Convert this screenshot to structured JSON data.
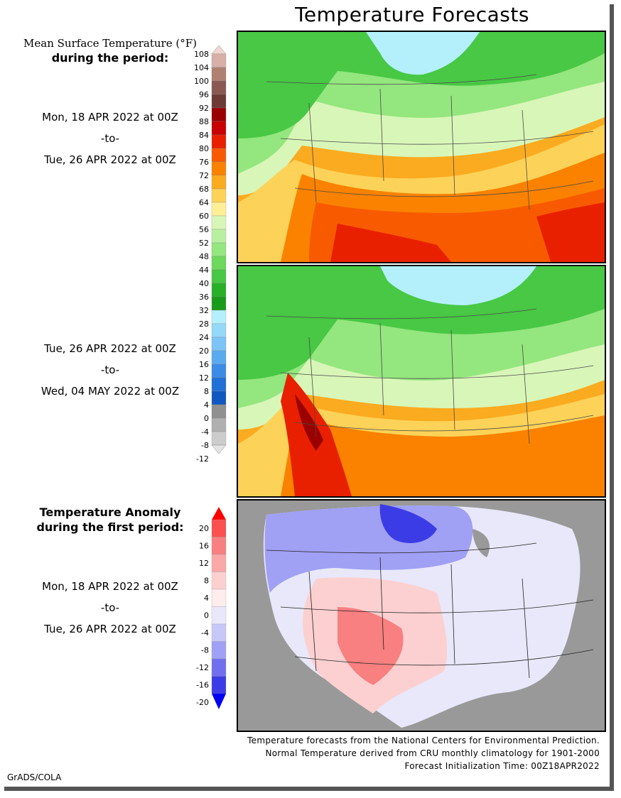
{
  "title": "Temperature Forecasts",
  "mean_legend": {
    "title_line1": "Mean Surface Temperature (°F)",
    "title_line2": "during the period:",
    "ticks": [
      "108",
      "104",
      "100",
      "96",
      "92",
      "88",
      "84",
      "80",
      "76",
      "72",
      "68",
      "64",
      "60",
      "56",
      "52",
      "48",
      "44",
      "40",
      "36",
      "32",
      "28",
      "24",
      "20",
      "16",
      "12",
      "8",
      "4",
      "0",
      "-4",
      "-8",
      "-12"
    ],
    "colors": [
      "#f0d8d0",
      "#d8b0a8",
      "#b08070",
      "#8a5850",
      "#6e3a34",
      "#9a0000",
      "#c80000",
      "#e82000",
      "#f85a00",
      "#fa8200",
      "#fbab20",
      "#fdd258",
      "#fff098",
      "#d8f6b8",
      "#b8f0a0",
      "#94e67e",
      "#6cd85c",
      "#48c844",
      "#28b028",
      "#1a9a1a",
      "#b4f0fc",
      "#96d8f8",
      "#7cc4f6",
      "#5aaaf0",
      "#3c8ce6",
      "#2070d8",
      "#1058c0",
      "#909090",
      "#b0b0b0",
      "#cccccc",
      "#e4e4e4"
    ]
  },
  "period1": {
    "start": "Mon, 18 APR 2022 at 00Z",
    "sep": "-to-",
    "end": "Tue, 26 APR 2022 at 00Z"
  },
  "period2": {
    "start": "Tue, 26 APR 2022 at 00Z",
    "sep": "-to-",
    "end": "Wed, 04 MAY 2022 at 00Z"
  },
  "anomaly_legend": {
    "title_line1": "Temperature Anomaly",
    "title_line2": "during the first period:",
    "ticks": [
      "20",
      "16",
      "12",
      "8",
      "4",
      "0",
      "-4",
      "-8",
      "-12",
      "-16",
      "-20"
    ],
    "colors": [
      "#ff0000",
      "#fa5050",
      "#f88080",
      "#faa8a8",
      "#fcd0d0",
      "#ffecec",
      "#e8e8fa",
      "#c8c8f8",
      "#a0a0f4",
      "#7070ee",
      "#3c3ce6",
      "#0000f0"
    ]
  },
  "period3": {
    "start": "Mon, 18 APR 2022 at 00Z",
    "sep": "-to-",
    "end": "Tue, 26 APR 2022 at 00Z"
  },
  "footer": {
    "line1": "Temperature forecasts from the National Centers for Environmental Prediction.",
    "line2": "Normal Temperature derived from CRU monthly climatology for 1901-2000",
    "line3": "Forecast Initialization Time: 00Z18APR2022"
  },
  "credit": "GrADS/COLA"
}
